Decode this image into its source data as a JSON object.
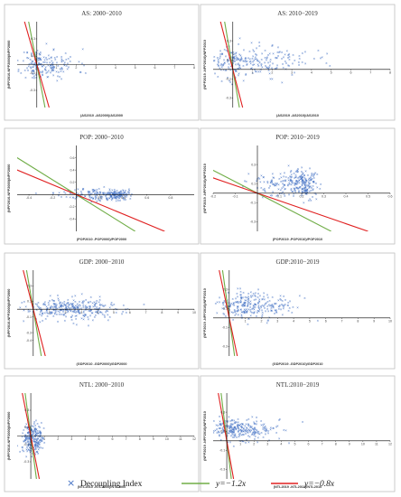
{
  "colors": {
    "points": "#4472c4",
    "green": "#70ad47",
    "red": "#e02020",
    "axis": "#000000",
    "frame": "#bfbfbf"
  },
  "legend": {
    "marker": "×",
    "index_label": "Decoupling Index",
    "green_label": "y=−1.2x",
    "red_label": "y=−0.8x"
  },
  "chart_data": [
    {
      "type": "scatter",
      "title": "AS: 2000−2010",
      "xlabel": "(AS2010 -AS2000)/AS2000",
      "ylabel": "(NPP2010-NPP2000)/NPP2000",
      "xlim": [
        -1,
        8
      ],
      "ylim": [
        -0.5,
        0.5
      ],
      "xticks": [
        1,
        2,
        3,
        4,
        5,
        6,
        7,
        8
      ],
      "xtick_labels": [
        "1",
        "2",
        "3",
        "4",
        "5",
        "6",
        "7",
        "8"
      ],
      "yticks": [
        -0.3,
        -0.1,
        0.1,
        0.3
      ],
      "ytick_labels": [
        "-0.3",
        "-0.1",
        "0.1",
        "0.3"
      ],
      "lines": [
        {
          "slope": -1.2,
          "color": "green"
        },
        {
          "slope": -0.8,
          "color": "red"
        }
      ],
      "cloud": {
        "n": 190,
        "seed": 11,
        "xc": 0.3,
        "xs": 0.55,
        "yc": 0.0,
        "ys": 0.09,
        "skew": 1.6
      }
    },
    {
      "type": "scatter",
      "title": "AS: 2010−2019",
      "xlabel": "(AS2019 -AS2010)/AS2010",
      "ylabel": "(NPP2019 -NPP2010)/NPP2010",
      "xlim": [
        -1,
        8
      ],
      "ylim": [
        -0.4,
        0.5
      ],
      "xticks": [
        1,
        2,
        3,
        4,
        5,
        6,
        7,
        8
      ],
      "xtick_labels": [
        "1",
        "2",
        "3",
        "4",
        "5",
        "6",
        "7",
        "8"
      ],
      "yticks": [
        -0.3,
        -0.1,
        0.1,
        0.3
      ],
      "ytick_labels": [
        "-0.3",
        "-0.1",
        "0.1",
        "0.3"
      ],
      "lines": [
        {
          "slope": -1.2,
          "color": "green"
        },
        {
          "slope": -0.8,
          "color": "red"
        }
      ],
      "cloud": {
        "n": 260,
        "seed": 23,
        "xc": 0.4,
        "xs": 0.9,
        "yc": 0.08,
        "ys": 0.08,
        "skew": 2.0
      }
    },
    {
      "type": "scatter",
      "title": "POP: 2000−2010",
      "xlabel": "(POP2010 -POP2000)/POP2000",
      "ylabel": "(NPP2010-NPP2000)/NPP2000",
      "xlim": [
        -0.5,
        1
      ],
      "ylim": [
        -0.6,
        0.8
      ],
      "xticks": [
        -0.4,
        -0.2,
        0.2,
        0.4,
        0.6,
        0.8
      ],
      "xtick_labels": [
        "-0.4",
        "-0.2",
        "0.2",
        "0.4",
        "0.6",
        "0.8"
      ],
      "yticks": [
        -0.4,
        -0.2,
        0.2,
        0.4,
        0.6
      ],
      "ytick_labels": [
        "-0.4",
        "-0.2",
        "0.2",
        "0.4",
        "0.6"
      ],
      "lines": [
        {
          "slope": -1.2,
          "color": "green"
        },
        {
          "slope": -0.8,
          "color": "red"
        }
      ],
      "cloud": {
        "n": 230,
        "seed": 37,
        "xc": 0.28,
        "xs": 0.2,
        "yc": 0.0,
        "ys": 0.05,
        "skew": 0.4
      }
    },
    {
      "type": "scatter",
      "title": "POP: 2010−2019",
      "xlabel": "(POP2019 -POP2010)/POP2010",
      "ylabel": "(NPP2019 -NPP2010)/NPP2010",
      "xlim": [
        -0.2,
        0.6
      ],
      "ylim": [
        -0.4,
        0.5
      ],
      "xticks": [
        -0.2,
        -0.1,
        0.1,
        0.2,
        0.3,
        0.4,
        0.5,
        0.6
      ],
      "xtick_labels": [
        "-0.2",
        "-0.1",
        "0.1",
        "0.2",
        "0.3",
        "0.4",
        "0.5",
        "0.6"
      ],
      "yticks": [
        -0.3,
        -0.1,
        0.1,
        0.3
      ],
      "ytick_labels": [
        "-0.3",
        "-0.1",
        "0.1",
        "0.3"
      ],
      "lines": [
        {
          "slope": -1.2,
          "color": "green"
        },
        {
          "slope": -0.8,
          "color": "red"
        }
      ],
      "cloud": {
        "n": 280,
        "seed": 41,
        "xc": 0.2,
        "xs": 0.11,
        "yc": 0.1,
        "ys": 0.07,
        "skew": 0.3
      }
    },
    {
      "type": "scatter",
      "title": "GDP: 2000−2010",
      "xlabel": "(GDP2010 -GDP2000)/GDP2000",
      "ylabel": "(NPP2010-NPP2000)/NPP2000",
      "xlim": [
        -1,
        10
      ],
      "ylim": [
        -0.6,
        0.5
      ],
      "xticks": [
        1,
        2,
        3,
        4,
        5,
        6,
        7,
        8,
        9,
        10
      ],
      "xtick_labels": [
        "1",
        "2",
        "3",
        "4",
        "5",
        "6",
        "7",
        "8",
        "9",
        "10"
      ],
      "yticks": [
        -0.4,
        -0.3,
        -0.1,
        0.1,
        0.3
      ],
      "ytick_labels": [
        "-0.4",
        "-0.3",
        "-0.1",
        "0.1",
        "0.3"
      ],
      "lines": [
        {
          "slope": -1.2,
          "color": "green"
        },
        {
          "slope": -0.8,
          "color": "red"
        }
      ],
      "cloud": {
        "n": 320,
        "seed": 53,
        "xc": 2.5,
        "xs": 1.6,
        "yc": 0.0,
        "ys": 0.07,
        "skew": 1.0
      }
    },
    {
      "type": "scatter",
      "title": "GDP:2010−2019",
      "xlabel": "(GDP2019 -GDP2010)/GDP2010",
      "ylabel": "(NPP2019 -NPP2010)/NPP2010",
      "xlim": [
        -1,
        10
      ],
      "ylim": [
        -0.4,
        0.5
      ],
      "xticks": [
        1,
        2,
        3,
        4,
        5,
        6,
        7,
        8,
        9,
        10
      ],
      "xtick_labels": [
        "1",
        "2",
        "3",
        "4",
        "5",
        "6",
        "7",
        "8",
        "9",
        "10"
      ],
      "yticks": [
        -0.3,
        -0.1,
        0.1,
        0.3
      ],
      "ytick_labels": [
        "-0.3",
        "-0.1",
        "0.1",
        "0.3"
      ],
      "lines": [
        {
          "slope": -1.2,
          "color": "green"
        },
        {
          "slope": -0.8,
          "color": "red"
        }
      ],
      "cloud": {
        "n": 260,
        "seed": 67,
        "xc": 1.2,
        "xs": 0.9,
        "yc": 0.12,
        "ys": 0.07,
        "skew": 1.4
      }
    },
    {
      "type": "scatter",
      "title": "NTL: 2000−2010",
      "xlabel": "(NTL2010 -NTL2000)/NTL2000",
      "ylabel": "(NPP2010-NPP2000)/NPP2000",
      "xlim": [
        -1,
        12
      ],
      "ylim": [
        -0.5,
        0.5
      ],
      "xticks": [
        1,
        2,
        3,
        4,
        5,
        6,
        7,
        8,
        9,
        10,
        11,
        12
      ],
      "xtick_labels": [
        "1",
        "2",
        "3",
        "4",
        "5",
        "6",
        "7",
        "8",
        "9",
        "10",
        "11",
        "12"
      ],
      "yticks": [
        -0.3,
        -0.1,
        0.1,
        0.3
      ],
      "ytick_labels": [
        "-0.3",
        "-0.1",
        "0.1",
        "0.3"
      ],
      "lines": [
        {
          "slope": -1.2,
          "color": "green"
        },
        {
          "slope": -0.8,
          "color": "red"
        }
      ],
      "cloud": {
        "n": 230,
        "seed": 79,
        "xc": 0.1,
        "xs": 0.35,
        "yc": -0.02,
        "ys": 0.09,
        "skew": 1.2
      }
    },
    {
      "type": "scatter",
      "title": "NTL:2010−2019",
      "xlabel": "(NTL2019 -NTL2010)/NTL2010",
      "ylabel": "(NPP2019 -NPP2010)/NPP2010",
      "xlim": [
        -1,
        12
      ],
      "ylim": [
        -0.4,
        0.5
      ],
      "xticks": [
        1,
        2,
        3,
        4,
        5,
        6,
        7,
        8,
        9,
        10,
        11,
        12
      ],
      "xtick_labels": [
        "1",
        "2",
        "3",
        "4",
        "5",
        "6",
        "7",
        "8",
        "9",
        "10",
        "11",
        "12"
      ],
      "yticks": [
        -0.3,
        -0.1,
        0.1,
        0.3
      ],
      "ytick_labels": [
        "-0.3",
        "-0.1",
        "0.1",
        "0.3"
      ],
      "lines": [
        {
          "slope": -1.2,
          "color": "green"
        },
        {
          "slope": -0.8,
          "color": "red"
        }
      ],
      "cloud": {
        "n": 260,
        "seed": 97,
        "xc": 0.6,
        "xs": 0.9,
        "yc": 0.12,
        "ys": 0.06,
        "skew": 1.8
      }
    }
  ]
}
